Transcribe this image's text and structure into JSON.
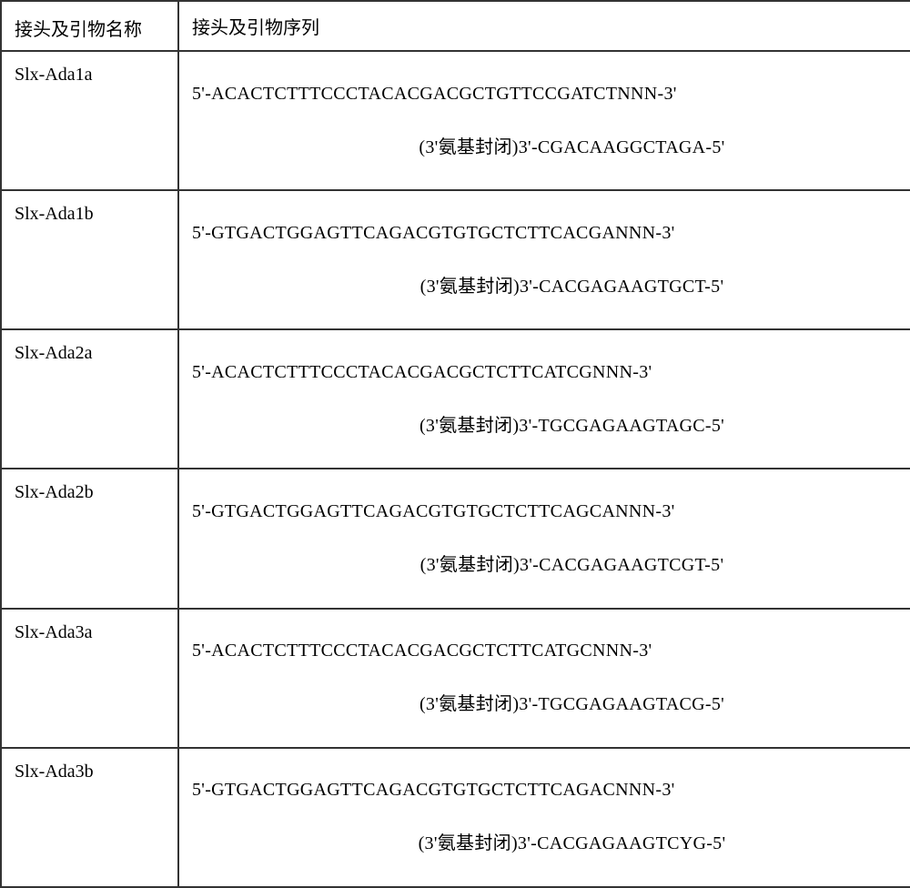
{
  "table": {
    "headers": {
      "name": "接头及引物名称",
      "sequence": "接头及引物序列"
    },
    "rows": [
      {
        "name": "Slx-Ada1a",
        "seq_line1": "5'-ACACTCTTTCCCTACACGACGCTGTTCCGATCTNNN-3'",
        "seq_line2_prefix": "(3'氨基封闭)",
        "seq_line2_seq": "3'-CGACAAGGCTAGA-5'"
      },
      {
        "name": "Slx-Ada1b",
        "seq_line1": "5'-GTGACTGGAGTTCAGACGTGTGCTCTTCACGANNN-3'",
        "seq_line2_prefix": "(3'氨基封闭)",
        "seq_line2_seq": "3'-CACGAGAAGTGCT-5'"
      },
      {
        "name": "Slx-Ada2a",
        "seq_line1": "5'-ACACTCTTTCCCTACACGACGCTCTTCATCGNNN-3'",
        "seq_line2_prefix": "(3'氨基封闭)",
        "seq_line2_seq": "3'-TGCGAGAAGTAGC-5'"
      },
      {
        "name": "Slx-Ada2b",
        "seq_line1": "5'-GTGACTGGAGTTCAGACGTGTGCTCTTCAGCANNN-3'",
        "seq_line2_prefix": "(3'氨基封闭)",
        "seq_line2_seq": "3'-CACGAGAAGTCGT-5'"
      },
      {
        "name": "Slx-Ada3a",
        "seq_line1": "5'-ACACTCTTTCCCTACACGACGCTCTTCATGCNNN-3'",
        "seq_line2_prefix": "(3'氨基封闭)",
        "seq_line2_seq": "3'-TGCGAGAAGTACG-5'"
      },
      {
        "name": "Slx-Ada3b",
        "seq_line1": "5'-GTGACTGGAGTTCAGACGTGTGCTCTTCAGACNNN-3'",
        "seq_line2_prefix": "(3'氨基封闭)",
        "seq_line2_seq": "3'-CACGAGAAGTCYG-5'"
      }
    ]
  }
}
